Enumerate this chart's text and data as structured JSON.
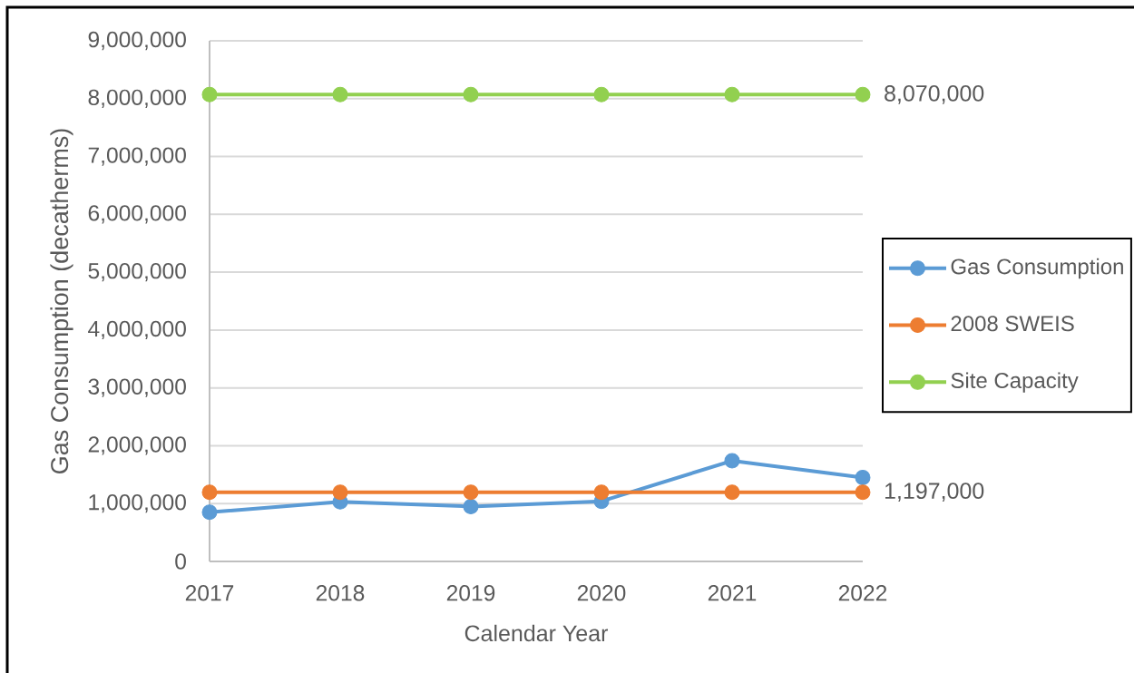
{
  "chart_data": {
    "type": "line",
    "xlabel": "Calendar Year",
    "ylabel": "Gas Consumption (decatherms)",
    "categories": [
      "2017",
      "2018",
      "2019",
      "2020",
      "2021",
      "2022"
    ],
    "series": [
      {
        "name": "Gas Consumption",
        "color": "#5b9bd5",
        "values": [
          850000,
          1030000,
          950000,
          1040000,
          1740000,
          1450000
        ]
      },
      {
        "name": "2008 SWEIS",
        "color": "#ed7d31",
        "values": [
          1197000,
          1197000,
          1197000,
          1197000,
          1197000,
          1197000
        ],
        "value_labels": [
          null,
          null,
          null,
          null,
          null,
          "1,197,000"
        ]
      },
      {
        "name": "Site Capacity",
        "color": "#92d050",
        "values": [
          8070000,
          8070000,
          8070000,
          8070000,
          8070000,
          8070000
        ],
        "value_labels": [
          null,
          null,
          null,
          null,
          null,
          "8,070,000"
        ]
      }
    ],
    "ylim": [
      0,
      9000000
    ],
    "yticks": [
      0,
      {
        "value": 1000000,
        "label": "1,000,000"
      },
      {
        "value": 2000000,
        "label": "2,000,000"
      },
      {
        "value": 3000000,
        "label": "3,000,000"
      },
      {
        "value": 4000000,
        "label": "4,000,000"
      },
      {
        "value": 5000000,
        "label": "5,000,000"
      },
      {
        "value": 6000000,
        "label": "6,000,000"
      },
      {
        "value": 7000000,
        "label": "7,000,000"
      },
      {
        "value": 8000000,
        "label": "8,000,000"
      },
      {
        "value": 9000000,
        "label": "9,000,000"
      }
    ],
    "grid": "y",
    "legend": "right",
    "marker": "circle",
    "line_style": "solid"
  }
}
